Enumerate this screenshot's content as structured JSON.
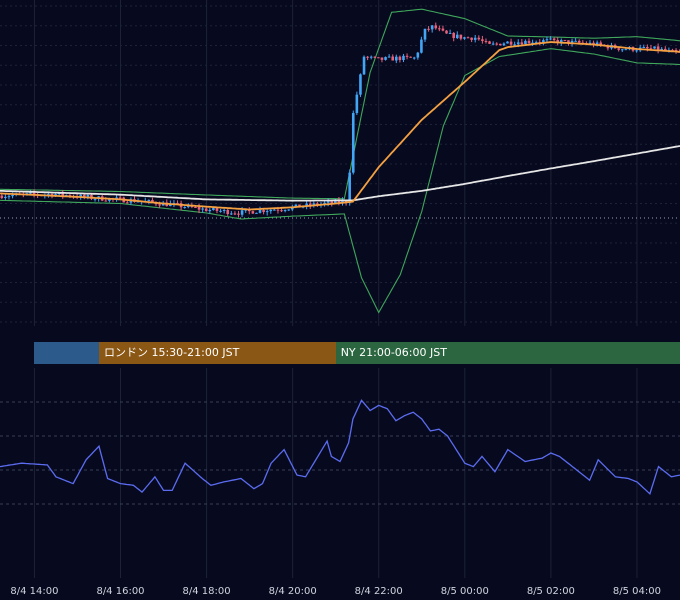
{
  "colors": {
    "background": "#070a1f",
    "grid": "#1e2236",
    "bollinger": "#3fa65a",
    "short_ma": "#f5a142",
    "long_ma": "#e6e6e6",
    "candle_up": "#42a5f5",
    "candle_down": "#e8607a",
    "oscillator": "#5b6cf0",
    "session_tokyo": "#2c5a8a",
    "session_london": "#8a5714",
    "session_ny": "#2c6640"
  },
  "sessions": [
    {
      "label": "",
      "color": "#2c5a8a",
      "start": 0,
      "end": 1.5
    },
    {
      "label": "ロンドン 15:30-21:00 JST",
      "color": "#8a5714",
      "start": 1.5,
      "end": 7
    },
    {
      "label": "NY 21:00-06:00 JST",
      "color": "#2c6640",
      "start": 7,
      "end": 16
    }
  ],
  "chart_data": [
    {
      "type": "candlestick",
      "x_ticks": [
        {
          "t": 0,
          "label": "14"
        },
        {
          "t": 2,
          "label": "16"
        },
        {
          "t": 4,
          "label": "18"
        },
        {
          "t": 6,
          "label": "20"
        },
        {
          "t": 8,
          "label": "22"
        },
        {
          "t": 10,
          "label": "0"
        },
        {
          "t": 12,
          "label": "2"
        },
        {
          "t": 14,
          "label": "4"
        }
      ],
      "x_range": [
        -0.8,
        15.0
      ],
      "y_range": [
        0,
        100
      ],
      "price_keypoints": [
        [
          -0.8,
          40
        ],
        [
          0.5,
          40.5
        ],
        [
          1.5,
          39.2
        ],
        [
          2.5,
          38.3
        ],
        [
          3.3,
          37
        ],
        [
          4,
          35.6
        ],
        [
          4.8,
          34.6
        ],
        [
          5.3,
          35.3
        ],
        [
          6,
          36.2
        ],
        [
          6.8,
          37.5
        ],
        [
          7.3,
          38.2
        ],
        [
          7.35,
          44
        ],
        [
          7.45,
          66
        ],
        [
          7.7,
          84
        ],
        [
          8,
          83
        ],
        [
          8.5,
          83.5
        ],
        [
          8.9,
          83.5
        ],
        [
          9.1,
          92
        ],
        [
          9.3,
          93.5
        ],
        [
          9.6,
          91
        ],
        [
          10,
          90
        ],
        [
          10.3,
          90
        ],
        [
          10.6,
          87.5
        ],
        [
          11,
          88.5
        ],
        [
          12,
          89
        ],
        [
          13,
          88
        ],
        [
          13.7,
          86.5
        ],
        [
          14.5,
          86.4
        ],
        [
          15,
          85
        ]
      ],
      "short_ma_keypoints": [
        [
          -0.8,
          40.7
        ],
        [
          1,
          39.6
        ],
        [
          2,
          38.8
        ],
        [
          3,
          37.5
        ],
        [
          4,
          36.5
        ],
        [
          5,
          35.6
        ],
        [
          6,
          36.3
        ],
        [
          7,
          37.5
        ],
        [
          7.4,
          38.1
        ],
        [
          8,
          49
        ],
        [
          9,
          64
        ],
        [
          10,
          76
        ],
        [
          10.8,
          86
        ],
        [
          11,
          87
        ],
        [
          12,
          88.6
        ],
        [
          13,
          87.8
        ],
        [
          14,
          86.4
        ],
        [
          15,
          85.5
        ]
      ],
      "long_ma_keypoints": [
        [
          -0.8,
          41.5
        ],
        [
          2,
          40.3
        ],
        [
          4,
          38.8
        ],
        [
          6,
          38.4
        ],
        [
          7.4,
          38.5
        ],
        [
          8,
          39.8
        ],
        [
          9,
          41.5
        ],
        [
          10,
          43.7
        ],
        [
          11,
          46.2
        ],
        [
          12,
          48.6
        ],
        [
          13,
          50.9
        ],
        [
          14,
          53.3
        ],
        [
          15,
          55.7
        ]
      ],
      "bb_upper_keypoints": [
        [
          -0.8,
          42
        ],
        [
          2,
          41.3
        ],
        [
          4,
          40.2
        ],
        [
          6,
          39.2
        ],
        [
          7.2,
          39
        ],
        [
          7.8,
          79
        ],
        [
          8.3,
          98
        ],
        [
          9,
          99
        ],
        [
          10,
          96
        ],
        [
          11,
          90.5
        ],
        [
          12,
          90.2
        ],
        [
          13,
          89.8
        ],
        [
          14,
          90.3
        ],
        [
          15,
          89
        ]
      ],
      "bb_lower_keypoints": [
        [
          -0.8,
          38.5
        ],
        [
          2,
          37.5
        ],
        [
          4,
          34.5
        ],
        [
          4.8,
          32.6
        ],
        [
          6,
          33.5
        ],
        [
          7.2,
          34.2
        ],
        [
          7.6,
          14
        ],
        [
          8,
          3
        ],
        [
          8.5,
          15
        ],
        [
          9,
          35
        ],
        [
          9.5,
          62
        ],
        [
          10,
          78
        ],
        [
          10.8,
          84
        ],
        [
          12,
          86.5
        ],
        [
          13,
          84.8
        ],
        [
          14,
          82
        ],
        [
          15,
          81.5
        ]
      ]
    },
    {
      "type": "line",
      "x_ticks": [
        {
          "t": 0,
          "label": "8/4 14:00"
        },
        {
          "t": 2,
          "label": "8/4 16:00"
        },
        {
          "t": 4,
          "label": "8/4 18:00"
        },
        {
          "t": 6,
          "label": "8/4 20:00"
        },
        {
          "t": 8,
          "label": "8/4 22:00"
        },
        {
          "t": 10,
          "label": "8/5 00:00"
        },
        {
          "t": 12,
          "label": "8/5 02:00"
        },
        {
          "t": 14,
          "label": "8/5 04:00"
        }
      ],
      "x_range": [
        -0.8,
        15.0
      ],
      "y_range": [
        0,
        100
      ],
      "keypoints": [
        [
          -0.8,
          42
        ],
        [
          -0.3,
          44
        ],
        [
          0.3,
          43
        ],
        [
          0.5,
          36
        ],
        [
          0.9,
          32
        ],
        [
          1.2,
          46
        ],
        [
          1.5,
          54
        ],
        [
          1.7,
          35
        ],
        [
          2,
          32
        ],
        [
          2.3,
          31
        ],
        [
          2.5,
          27
        ],
        [
          2.8,
          36
        ],
        [
          3,
          28
        ],
        [
          3.2,
          28
        ],
        [
          3.5,
          44
        ],
        [
          3.9,
          35
        ],
        [
          4.1,
          31
        ],
        [
          4.4,
          33
        ],
        [
          4.8,
          35
        ],
        [
          5.1,
          29
        ],
        [
          5.3,
          32
        ],
        [
          5.5,
          44
        ],
        [
          5.8,
          52
        ],
        [
          6.1,
          37
        ],
        [
          6.3,
          36
        ],
        [
          6.8,
          57
        ],
        [
          6.9,
          48
        ],
        [
          7.1,
          45
        ],
        [
          7.3,
          56
        ],
        [
          7.4,
          70
        ],
        [
          7.6,
          81
        ],
        [
          7.8,
          75
        ],
        [
          8,
          78
        ],
        [
          8.2,
          76
        ],
        [
          8.4,
          69
        ],
        [
          8.6,
          72
        ],
        [
          8.8,
          74
        ],
        [
          9,
          70
        ],
        [
          9.2,
          63
        ],
        [
          9.4,
          64
        ],
        [
          9.6,
          60
        ],
        [
          10,
          44
        ],
        [
          10.2,
          42
        ],
        [
          10.4,
          48
        ],
        [
          10.7,
          39
        ],
        [
          11,
          52
        ],
        [
          11.4,
          45
        ],
        [
          11.8,
          47
        ],
        [
          12,
          50
        ],
        [
          12.2,
          48
        ],
        [
          12.5,
          42
        ],
        [
          12.9,
          34
        ],
        [
          13.1,
          46
        ],
        [
          13.5,
          36
        ],
        [
          13.8,
          35
        ],
        [
          14,
          33
        ],
        [
          14.3,
          26
        ],
        [
          14.5,
          42
        ],
        [
          14.8,
          36
        ],
        [
          15,
          37
        ]
      ]
    }
  ]
}
